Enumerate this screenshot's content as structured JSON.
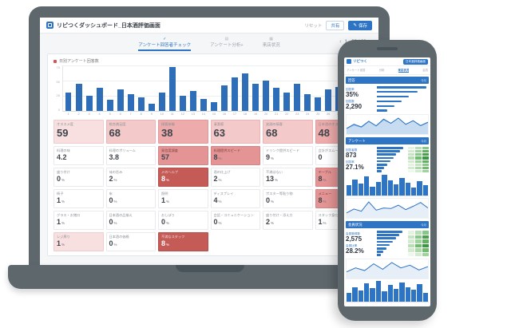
{
  "colors": {
    "primary_blue": "#2e74c4",
    "bar_blue": "#2e6db8",
    "device_gray": "#5d676c",
    "card_pink": "#f4c9c9",
    "card_red": "#e49494",
    "card_dark_red": "#c45b57",
    "heat_green_dark": "#47a24b"
  },
  "laptop": {
    "header": {
      "title": "リピつくダッシュボード_日本酒評価画面",
      "reset_label": "リセット",
      "share_label": "共有",
      "save_label": "保存",
      "save_icon": "✎"
    },
    "tabs": [
      {
        "icon": "✓",
        "label": "アンケート回答者チェック",
        "active": true
      },
      {
        "icon": "▤",
        "label": "アンケート分析+",
        "active": false
      },
      {
        "icon": "▦",
        "label": "来店状況",
        "active": false
      }
    ],
    "pagination": {
      "prev": "‹",
      "range": "1 - 29 / 29",
      "next": "›"
    },
    "chart": {
      "type": "bar",
      "legend": "日別アンケート回答数",
      "ymax": 75,
      "yticks": [
        75,
        50,
        25,
        0
      ],
      "categories": [
        1,
        2,
        3,
        4,
        5,
        6,
        7,
        8,
        9,
        10,
        11,
        12,
        13,
        14,
        15,
        16,
        17,
        18,
        19,
        20,
        21,
        22,
        23,
        24,
        25,
        26,
        27,
        28,
        29
      ],
      "values": [
        30,
        45,
        25,
        38,
        18,
        35,
        28,
        22,
        12,
        30,
        72,
        25,
        33,
        20,
        14,
        42,
        55,
        62,
        45,
        50,
        38,
        30,
        44,
        28,
        22,
        35,
        40,
        30,
        18
      ]
    },
    "kpi_rows": [
      [
        {
          "label": "オススメ度",
          "value": "59",
          "style": "pink-light"
        },
        {
          "label": "総合満足度",
          "value": "68",
          "style": "pink"
        },
        {
          "label": "接客体験",
          "value": "38",
          "style": "pink-deep"
        },
        {
          "label": "清潔感",
          "value": "63",
          "style": "pink"
        },
        {
          "label": "笑顔の接客",
          "value": "68",
          "style": "pink"
        },
        {
          "label": "日本酒のオススメ",
          "value": "48",
          "style": "pink-deep"
        }
      ],
      [
        {
          "label": "料理の味",
          "value": "4.2",
          "style": "white"
        },
        {
          "label": "料理のボリューム",
          "value": "3.8",
          "style": "white"
        },
        {
          "label": "発信度調査",
          "value": "57",
          "style": "red"
        },
        {
          "label": "料理提供スピード",
          "value": "8",
          "unit": "%",
          "style": "red"
        },
        {
          "label": "ドリンク提供スピード",
          "value": "9",
          "unit": "%",
          "style": "white"
        },
        {
          "label": "会計がスムーズ",
          "value": "0",
          "style": "white"
        }
      ],
      [
        {
          "label": "盛り付け",
          "value": "0",
          "unit": "%",
          "style": "white"
        },
        {
          "label": "味の旨み",
          "value": "2",
          "unit": "%",
          "style": "white"
        },
        {
          "label": "〆のヘルプ",
          "value": "8",
          "unit": "%",
          "style": "dark-red"
        },
        {
          "label": "酒の仕上げ",
          "value": "2",
          "unit": "%",
          "style": "white"
        },
        {
          "label": "不満はない",
          "value": "13",
          "unit": "%",
          "style": "white"
        },
        {
          "label": "テーブル",
          "value": "8",
          "unit": "%",
          "style": "red"
        }
      ],
      [
        {
          "label": "椅子",
          "value": "1",
          "unit": "%",
          "style": "white"
        },
        {
          "label": "床",
          "value": "0",
          "unit": "%",
          "style": "white"
        },
        {
          "label": "照明",
          "value": "1",
          "unit": "%",
          "style": "white"
        },
        {
          "label": "ディスプレイ",
          "value": "4",
          "unit": "%",
          "style": "white"
        },
        {
          "label": "ポスター等貼り物",
          "value": "0",
          "unit": "%",
          "style": "white"
        },
        {
          "label": "メニュー",
          "value": "8",
          "unit": "%",
          "style": "red"
        }
      ],
      [
        {
          "label": "グラス・お猪口",
          "value": "1",
          "unit": "%",
          "style": "white"
        },
        {
          "label": "日本酒の品揃え",
          "value": "0",
          "unit": "%",
          "style": "white"
        },
        {
          "label": "おしぼり",
          "value": "0",
          "unit": "%",
          "style": "white"
        },
        {
          "label": "会話・コミュニケーション",
          "value": "0",
          "unit": "%",
          "style": "white"
        },
        {
          "label": "盛り付け・添え方",
          "value": "2",
          "unit": "%",
          "style": "white"
        },
        {
          "label": "スタッフ身だしなみ",
          "value": "1",
          "unit": "%",
          "style": "white"
        }
      ],
      [
        {
          "label": "レジ周り",
          "value": "1",
          "unit": "%",
          "style": "pink-light"
        },
        {
          "label": "日本酒の価格",
          "value": "0",
          "unit": "%",
          "style": "white"
        },
        {
          "label": "不満なスタッフ",
          "value": "8",
          "unit": "%",
          "style": "dark-red"
        }
      ]
    ]
  },
  "phone": {
    "header": {
      "logo_text": "リピつく",
      "screen_button": "日本酒評価画面"
    },
    "tabs": [
      {
        "label": "アンケート回答",
        "active": false
      },
      {
        "label": "分析",
        "active": false
      },
      {
        "label": "来店状況",
        "active": true
      },
      {
        "label": "会員",
        "active": false
      }
    ],
    "sections": [
      {
        "title": "回答",
        "title_right": "今月",
        "kpis": [
          {
            "label": "回答率",
            "value": "35%"
          },
          {
            "label": "回答数",
            "value": "2,290"
          }
        ],
        "hbars": [
          95,
          78,
          62,
          48,
          34,
          20
        ],
        "charts": [
          {
            "type": "line",
            "series_a": [
              22,
              38,
              28,
              50,
              32,
              58,
              42,
              62,
              38,
              52,
              33,
              46
            ],
            "series_b": [
              12,
              20,
              15,
              28,
              18,
              32,
              24,
              36,
              22,
              30,
              19,
              26
            ]
          }
        ]
      },
      {
        "title": "アンケート",
        "title_right": "今月",
        "kpis": [
          {
            "label": "回答者数",
            "value": "873"
          },
          {
            "label": "回答率",
            "value": "27.1%"
          }
        ],
        "hbars": [
          92,
          80,
          68,
          57,
          46,
          35,
          25,
          16
        ],
        "heatmap": [
          [
            "#e3f2e1",
            "#b9deb6",
            "#86c887"
          ],
          [
            "#d2ebcf",
            "#9ed49b",
            "#5fb25f"
          ],
          [
            "#c3e5bf",
            "#86c887",
            "#47a24b"
          ],
          [
            "#b9deb6",
            "#6fbc6f",
            "#3b9641"
          ],
          [
            "#d2ebcf",
            "#9ed49b",
            "#5fb25f"
          ],
          [
            "#e3f2e1",
            "#c3e5bf",
            "#86c887"
          ],
          [
            "#d2ebcf",
            "#aad9a7",
            "#6fbc6f"
          ],
          [
            "#eef7ec",
            "#d2ebcf",
            "#9ed49b"
          ]
        ],
        "charts": [
          {
            "type": "vbar",
            "values": [
              35,
              55,
              40,
              68,
              30,
              46,
              72,
              52,
              38,
              62,
              44,
              28,
              50,
              36
            ]
          },
          {
            "type": "line",
            "series_a": [
              18,
              32,
              24,
              58,
              28,
              36,
              34,
              46,
              30,
              42,
              56,
              36
            ]
          }
        ]
      },
      {
        "title": "会員状況",
        "title_right": "今月",
        "kpis": [
          {
            "label": "会員登録数",
            "value": "2,575"
          },
          {
            "label": "会員比率",
            "value": "28.2%"
          }
        ],
        "hbars": [
          90,
          79,
          67,
          55,
          44,
          33,
          23,
          14
        ],
        "heatmap": [
          [
            "#e3f2e1",
            "#b9deb6",
            "#86c887"
          ],
          [
            "#c3e5bf",
            "#86c887",
            "#47a24b"
          ],
          [
            "#d2ebcf",
            "#9ed49b",
            "#5fb25f"
          ],
          [
            "#b9deb6",
            "#6fbc6f",
            "#3b9641"
          ],
          [
            "#d2ebcf",
            "#aad9a7",
            "#6fbc6f"
          ],
          [
            "#eef7ec",
            "#d2ebcf",
            "#9ed49b"
          ]
        ],
        "charts": [
          {
            "type": "line",
            "series_a": [
              25,
              40,
              30,
              55,
              35,
              60,
              40,
              50,
              32,
              45
            ]
          },
          {
            "type": "vbar",
            "values": [
              30,
              48,
              38,
              62,
              45,
              70,
              35,
              55,
              42,
              65,
              50,
              40,
              58,
              30
            ]
          }
        ]
      }
    ]
  }
}
